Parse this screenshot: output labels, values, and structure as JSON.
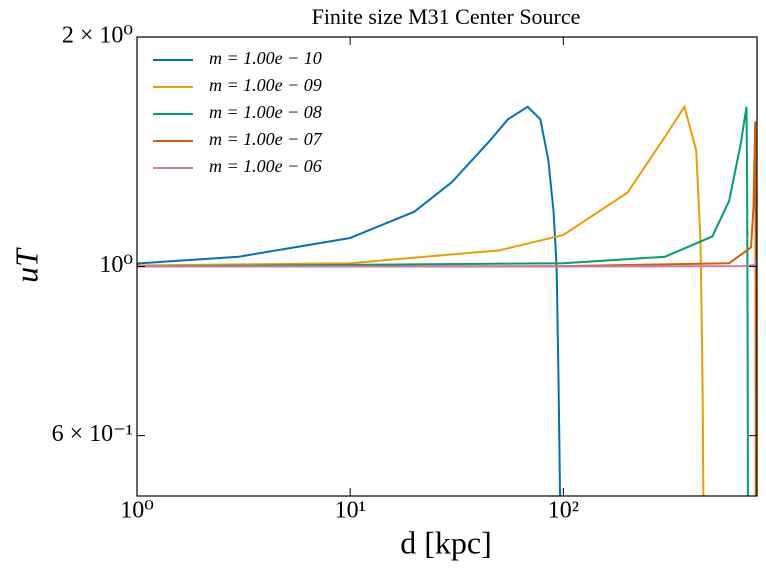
{
  "chart_data": {
    "type": "line",
    "title": "Finite size M31 Center Source",
    "xlabel": "d [kpc]",
    "ylabel": "uT",
    "xscale": "log",
    "yscale": "log",
    "xlim": [
      1,
      810
    ],
    "ylim": [
      0.5,
      2
    ],
    "xticks": [
      {
        "value": 1,
        "label": "10⁰"
      },
      {
        "value": 10,
        "label": "10¹"
      },
      {
        "value": 100,
        "label": "10²"
      }
    ],
    "yticks": [
      {
        "value": 2,
        "label": "2 × 10⁰"
      },
      {
        "value": 1,
        "label": "10⁰"
      },
      {
        "value": 0.6,
        "label": "6 × 10⁻¹"
      }
    ],
    "legend": "upper left",
    "series": [
      {
        "name": "m = 1.00e − 10",
        "color": "#0072b2",
        "x": [
          1,
          3,
          10,
          20,
          30,
          45,
          55,
          68,
          78,
          85,
          90,
          93,
          95,
          97
        ],
        "values": [
          1.009,
          1.03,
          1.09,
          1.18,
          1.29,
          1.46,
          1.56,
          1.62,
          1.56,
          1.38,
          1.18,
          1.0,
          0.7,
          0.45
        ]
      },
      {
        "name": "m = 1.00e − 09",
        "color": "#e69f00",
        "x": [
          1,
          10,
          50,
          100,
          200,
          300,
          370,
          420,
          440,
          450,
          455
        ],
        "values": [
          1.003,
          1.01,
          1.05,
          1.1,
          1.25,
          1.48,
          1.62,
          1.42,
          1.08,
          0.7,
          0.45
        ]
      },
      {
        "name": "m = 1.00e − 08",
        "color": "#009e73",
        "x": [
          1,
          100,
          300,
          500,
          600,
          680,
          723,
          728,
          732,
          735
        ],
        "values": [
          1.0,
          1.01,
          1.03,
          1.095,
          1.22,
          1.45,
          1.62,
          1.3,
          0.8,
          0.45
        ]
      },
      {
        "name": "m = 1.00e − 07",
        "color": "#d55e00",
        "x": [
          1,
          100,
          600,
          760,
          780,
          795,
          798,
          800
        ],
        "values": [
          1.0,
          1.001,
          1.01,
          1.06,
          1.2,
          1.55,
          1.0,
          0.45
        ]
      },
      {
        "name": "m = 1.00e − 06",
        "color": "#cc79a7",
        "x": [
          1,
          100,
          700,
          780,
          800,
          810
        ],
        "values": [
          1.0,
          1.0,
          1.001,
          1.004,
          1.01,
          1.02
        ]
      }
    ]
  }
}
